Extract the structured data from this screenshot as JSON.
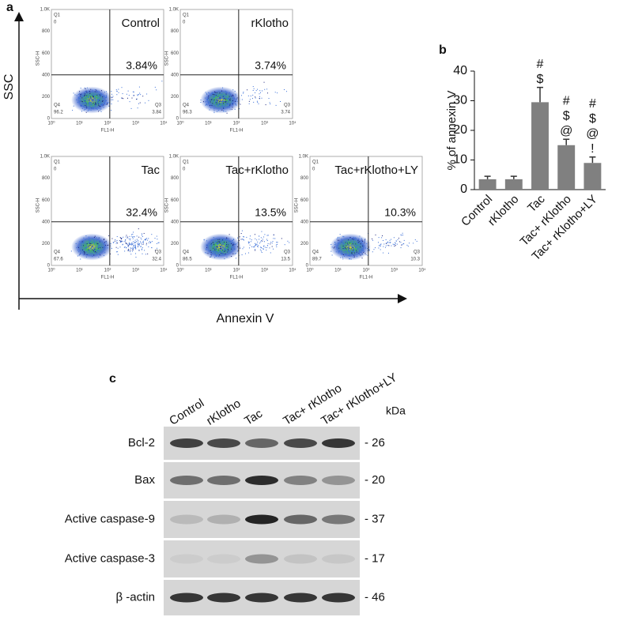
{
  "panel_labels": [
    "a",
    "b",
    "c"
  ],
  "flow_cytometry": {
    "y_axis_label": "SSC",
    "x_axis_label": "Annexin V",
    "plot_ylabel": "SSC-H",
    "plot_xlabel": "FL1-H",
    "plot_yticks": [
      "0",
      "200",
      "400",
      "600",
      "800",
      "1.0K"
    ],
    "plot_xticks": [
      "10⁰",
      "10¹",
      "10²",
      "10³",
      "10⁴"
    ],
    "plots": [
      {
        "title": "Control",
        "percent": "3.84%",
        "q1": "Q1",
        "q1_value": "0",
        "q4": "Q4",
        "q4_value": "96.2",
        "q3": "Q3",
        "q3_value": "3.84"
      },
      {
        "title": "rKlotho",
        "percent": "3.74%",
        "q1": "Q1",
        "q1_value": "0",
        "q4": "Q4",
        "q4_value": "96.3",
        "q3": "Q3",
        "q3_value": "3.74"
      },
      {
        "title": "Tac",
        "percent": "32.4%",
        "q1": "Q1",
        "q1_value": "0",
        "q4": "Q4",
        "q4_value": "67.6",
        "q3": "Q3",
        "q3_value": "32.4"
      },
      {
        "title": "Tac+rKlotho",
        "percent": "13.5%",
        "q1": "Q1",
        "q1_value": "0",
        "q4": "Q4",
        "q4_value": "86.5",
        "q3": "Q3",
        "q3_value": "13.5"
      },
      {
        "title": "Tac+rKlotho+LY",
        "percent": "10.3%",
        "q1": "Q1",
        "q1_value": "0",
        "q4": "Q4",
        "q4_value": "89.7",
        "q3": "Q3",
        "q3_value": "10.3"
      }
    ]
  },
  "chart_data": {
    "type": "bar",
    "y_axis_label": "% of annexin V",
    "categories": [
      "Control",
      "rKlotho",
      "Tac",
      "Tac+ rKlotho",
      "Tac+ rKlotho+LY"
    ],
    "values": [
      3.5,
      3.5,
      29.5,
      15,
      9
    ],
    "errors": [
      1,
      1,
      5,
      2,
      2
    ],
    "annotations": [
      null,
      null,
      [
        "#",
        "$"
      ],
      [
        "#",
        "$",
        "@"
      ],
      [
        "#",
        "$",
        "@",
        "!"
      ]
    ],
    "color": "#808080",
    "ylim": [
      0,
      40
    ],
    "yticks": [
      0,
      10,
      20,
      30,
      40
    ]
  },
  "western_blot": {
    "lanes": [
      "Control",
      "rKlotho",
      "Tac",
      "Tac+ rKlotho",
      "Tac+ rKlotho+LY"
    ],
    "unit_label": "kDa",
    "rows": [
      {
        "label": "Bcl-2",
        "marker": "- 26"
      },
      {
        "label": "Bax",
        "marker": "- 20"
      },
      {
        "label": "Active caspase-9",
        "marker": "- 37"
      },
      {
        "label": "Active caspase-3",
        "marker": "- 17"
      },
      {
        "label": "β -actin",
        "marker": "- 46"
      }
    ]
  }
}
